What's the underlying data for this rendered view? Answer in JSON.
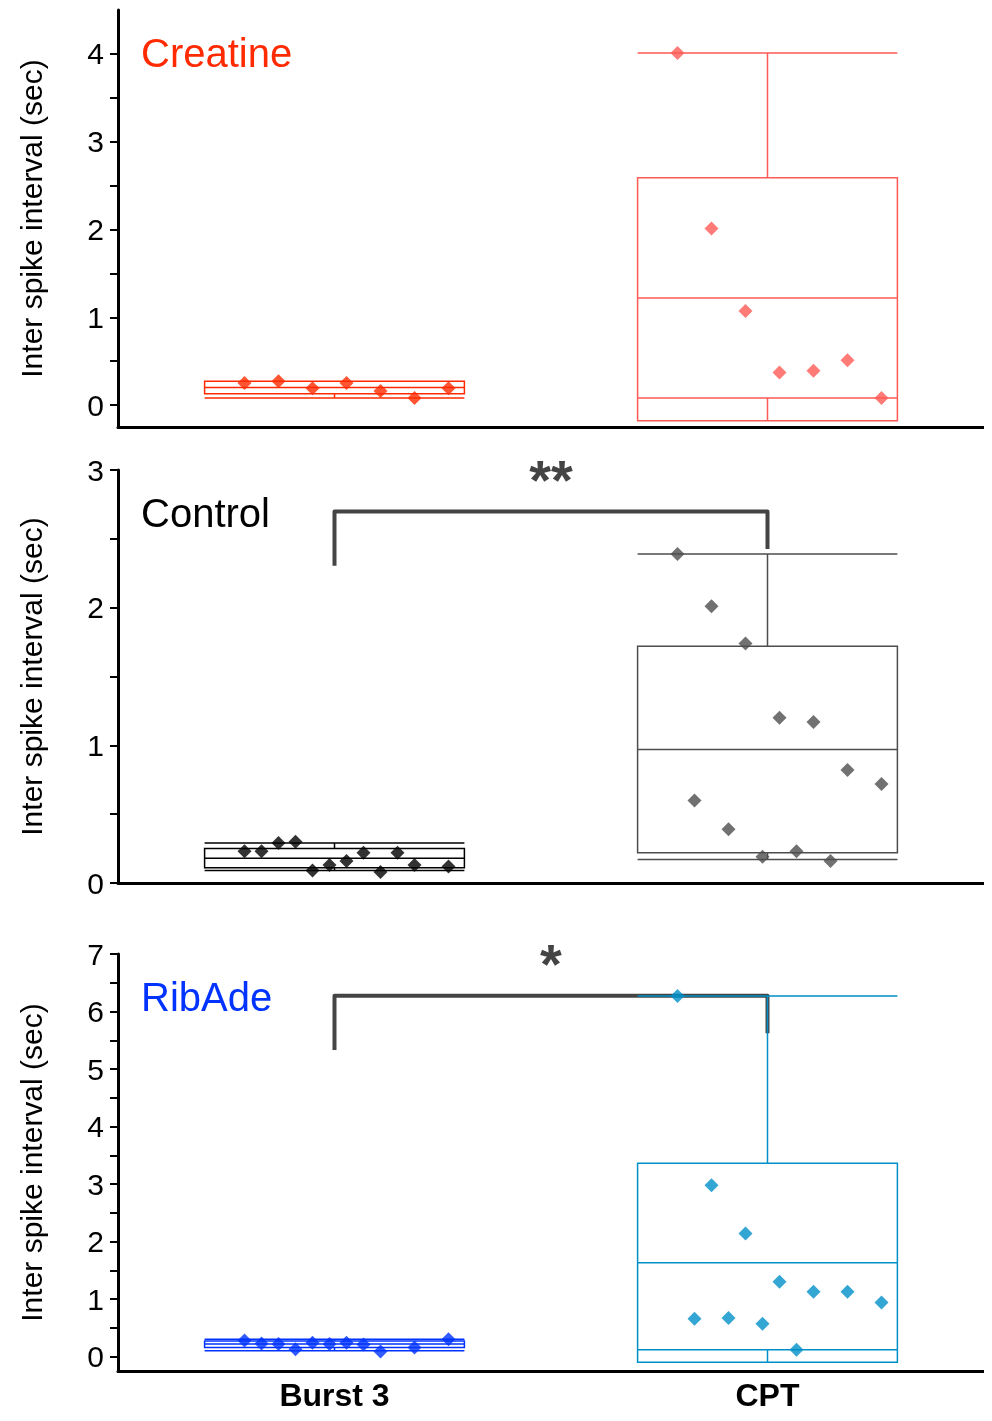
{
  "chart_data": [
    {
      "type": "box",
      "title": "Creatine",
      "ylabel": "Inter spike interval (sec)",
      "categories": [
        "Burst 3",
        "CPT"
      ],
      "ylim": [
        -0.25,
        4.5
      ],
      "yticks": [
        0,
        {
          "value": 0.5,
          "label": null
        },
        1,
        {
          "value": 1.5,
          "label": null
        },
        2,
        {
          "value": 2.5,
          "label": null
        },
        3,
        {
          "value": 3.5,
          "label": null
        },
        4
      ],
      "boxes": [
        {
          "low": 0.08,
          "q1": 0.13,
          "median": 0.2,
          "q3": 0.27,
          "high": 0.27
        },
        {
          "low": 0.08,
          "q1": -0.18,
          "median": 1.22,
          "q3": 2.59,
          "high": 4.01
        }
      ],
      "colors": [
        "#ff2a00",
        "#ff5a55"
      ],
      "series": [
        {
          "type": "scatter",
          "color": "#ff2a00",
          "x": [
            "Burst 3",
            "Burst 3",
            "Burst 3",
            "Burst 3",
            "Burst 3",
            "Burst 3",
            "Burst 3"
          ],
          "values": [
            0.25,
            0.27,
            0.19,
            0.25,
            0.16,
            0.08,
            0.19
          ]
        },
        {
          "type": "scatter",
          "color": "#ff5a55",
          "x": [
            "CPT",
            "CPT",
            "CPT",
            "CPT",
            "CPT",
            "CPT",
            "CPT"
          ],
          "values": [
            4.01,
            2.01,
            1.07,
            0.37,
            0.39,
            0.51,
            0.08
          ]
        }
      ],
      "marker": "diamond",
      "grid": false,
      "tick_labels": "y"
    },
    {
      "type": "box",
      "title": "Control",
      "ylabel": "Inter spike interval (sec)",
      "categories": [
        "Burst 3",
        "CPT"
      ],
      "ylim": [
        0,
        3
      ],
      "yticks": [
        0,
        {
          "value": 0.5,
          "label": null
        },
        1,
        {
          "value": 1.5,
          "label": null
        },
        2,
        {
          "value": 2.5,
          "label": null
        },
        3
      ],
      "boxes": [
        {
          "low": 0.09,
          "q1": 0.11,
          "median": 0.18,
          "q3": 0.25,
          "high": 0.29
        },
        {
          "low": 0.17,
          "q1": 0.22,
          "median": 0.97,
          "q3": 1.72,
          "high": 2.39
        }
      ],
      "colors": [
        "#000000",
        "#4d4d4d"
      ],
      "series": [
        {
          "type": "scatter",
          "color": "#000000",
          "x": [
            "Burst 3",
            "Burst 3",
            "Burst 3",
            "Burst 3",
            "Burst 3",
            "Burst 3",
            "Burst 3",
            "Burst 3",
            "Burst 3",
            "Burst 3",
            "Burst 3",
            "Burst 3"
          ],
          "values": [
            0.23,
            0.29,
            0.09,
            0.16,
            0.08,
            0.13,
            0.12,
            0.23,
            0.3,
            0.13,
            0.22,
            0.22
          ]
        },
        {
          "type": "scatter",
          "color": "#4d4d4d",
          "x": [
            "CPT",
            "CPT",
            "CPT",
            "CPT",
            "CPT",
            "CPT",
            "CPT",
            "CPT",
            "CPT",
            "CPT",
            "CPT",
            "CPT"
          ],
          "values": [
            2.39,
            2.01,
            1.74,
            1.2,
            1.17,
            0.82,
            0.72,
            0.6,
            0.39,
            0.19,
            0.23,
            0.16
          ]
        }
      ],
      "annotations": [
        "**"
      ],
      "marker": "diamond",
      "grid": false,
      "tick_labels": "y"
    },
    {
      "type": "box",
      "title": "RibAde",
      "ylabel": "Inter spike interval (sec)",
      "categories": [
        "Burst 3",
        "CPT"
      ],
      "ylim": [
        -0.25,
        7
      ],
      "yticks": [
        0,
        {
          "value": 0.5,
          "label": null
        },
        1,
        {
          "value": 1.5,
          "label": null
        },
        2,
        {
          "value": 2.5,
          "label": null
        },
        3,
        {
          "value": 3.5,
          "label": null
        },
        4,
        {
          "value": 4.5,
          "label": null
        },
        5,
        {
          "value": 5.5,
          "label": null
        },
        6,
        {
          "value": 6.5,
          "label": null
        },
        7
      ],
      "boxes": [
        {
          "low": 0.1,
          "q1": 0.16,
          "median": 0.22,
          "q3": 0.27,
          "high": 0.3
        },
        {
          "low": 0.12,
          "q1": -0.1,
          "median": 1.63,
          "q3": 3.36,
          "high": 6.27
        }
      ],
      "colors": [
        "#0033ff",
        "#0090c8"
      ],
      "series": [
        {
          "type": "scatter",
          "color": "#0033ff",
          "x": [
            "Burst 3",
            "Burst 3",
            "Burst 3",
            "Burst 3",
            "Burst 3",
            "Burst 3",
            "Burst 3",
            "Burst 3",
            "Burst 3",
            "Burst 3",
            "Burst 3"
          ],
          "values": [
            0.28,
            0.22,
            0.24,
            0.24,
            0.09,
            0.16,
            0.3,
            0.23,
            0.13,
            0.22,
            0.21
          ]
        },
        {
          "type": "scatter",
          "color": "#0090c8",
          "x": [
            "CPT",
            "CPT",
            "CPT",
            "CPT",
            "CPT",
            "CPT",
            "CPT",
            "CPT",
            "CPT",
            "CPT",
            "CPT"
          ],
          "values": [
            6.27,
            2.98,
            2.14,
            1.3,
            1.13,
            1.13,
            0.94,
            0.66,
            0.67,
            0.57,
            0.12
          ]
        }
      ],
      "annotations": [
        "*"
      ],
      "marker": "diamond",
      "grid": false
    }
  ]
}
